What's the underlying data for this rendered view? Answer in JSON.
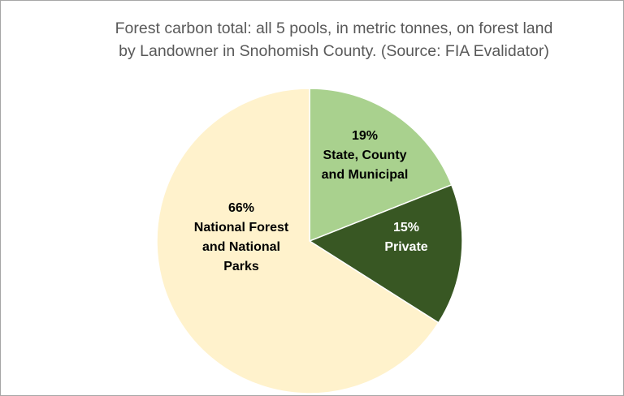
{
  "chart_data": {
    "type": "pie",
    "title_lines": [
      "Forest carbon total: all 5 pools, in metric tonnes, on forest land",
      "by Landowner in Snohomish County.  (Source: FIA Evalidator)"
    ],
    "slices": [
      {
        "label_lines": [
          "State, County",
          "and Municipal"
        ],
        "value": 19,
        "percent_label": "19%",
        "color": "#a9d18e",
        "text_color": "#000000"
      },
      {
        "label_lines": [
          "Private"
        ],
        "value": 15,
        "percent_label": "15%",
        "color": "#385723",
        "text_color": "#ffffff"
      },
      {
        "label_lines": [
          "National Forest",
          "and National",
          "Parks"
        ],
        "value": 66,
        "percent_label": "66%",
        "color": "#fff2cc",
        "text_color": "#000000"
      }
    ],
    "legend": "none",
    "start_angle": "12 o'clock, clockwise"
  }
}
